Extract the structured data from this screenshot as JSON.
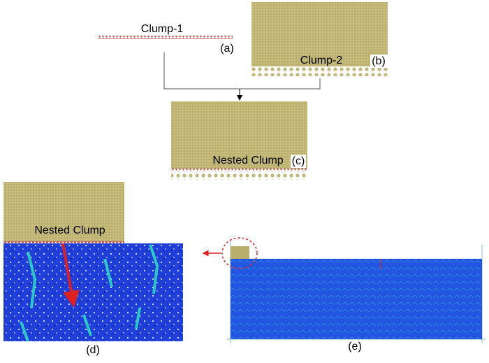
{
  "panels": {
    "a": {
      "label": "Clump-1",
      "tag": "(a)"
    },
    "b": {
      "label": "Clump-2",
      "tag": "(b)"
    },
    "c": {
      "label": "Nested Clump",
      "tag": "(c)"
    },
    "d": {
      "label": "Nested Clump",
      "tag": "(d)"
    },
    "e": {
      "tag": "(e)"
    }
  }
}
